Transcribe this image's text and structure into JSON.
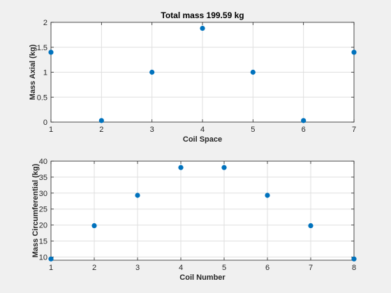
{
  "colors": {
    "marker": "#0072bd",
    "grid": "#dfdfdf",
    "axes": "#262626",
    "plot_bg": "#ffffff"
  },
  "chart_data": [
    {
      "type": "scatter",
      "title": "Total mass   199.59 kg",
      "xlabel": "Coil Space",
      "ylabel": "Mass Axial (kg)",
      "xlim": [
        1,
        7
      ],
      "ylim": [
        0,
        2
      ],
      "xticks": [
        1,
        2,
        3,
        4,
        5,
        6,
        7
      ],
      "yticks": [
        0,
        0.5,
        1,
        1.5,
        2
      ],
      "xtick_labels": [
        "1",
        "2",
        "3",
        "4",
        "5",
        "6",
        "7"
      ],
      "ytick_labels": [
        "0",
        "0.5",
        "1",
        "1.5",
        "2"
      ],
      "grid": true,
      "x": [
        1,
        2,
        3,
        4,
        5,
        6,
        7
      ],
      "y": [
        1.4,
        0.03,
        1.0,
        1.88,
        1.0,
        0.03,
        1.4
      ]
    },
    {
      "type": "scatter",
      "title": "",
      "xlabel": "Coil Number",
      "ylabel": "Mass Circumferential (kg)",
      "xlim": [
        1,
        8
      ],
      "ylim": [
        9,
        40
      ],
      "xticks": [
        1,
        2,
        3,
        4,
        5,
        6,
        7,
        8
      ],
      "yticks": [
        10,
        15,
        20,
        25,
        30,
        35,
        40
      ],
      "xtick_labels": [
        "1",
        "2",
        "3",
        "4",
        "5",
        "6",
        "7",
        "8"
      ],
      "ytick_labels": [
        "10",
        "15",
        "20",
        "25",
        "30",
        "35",
        "40"
      ],
      "grid": true,
      "x": [
        1,
        2,
        3,
        4,
        5,
        6,
        7,
        8
      ],
      "y": [
        9.4,
        19.8,
        29.3,
        38.0,
        38.0,
        29.3,
        19.8,
        9.4
      ]
    }
  ]
}
